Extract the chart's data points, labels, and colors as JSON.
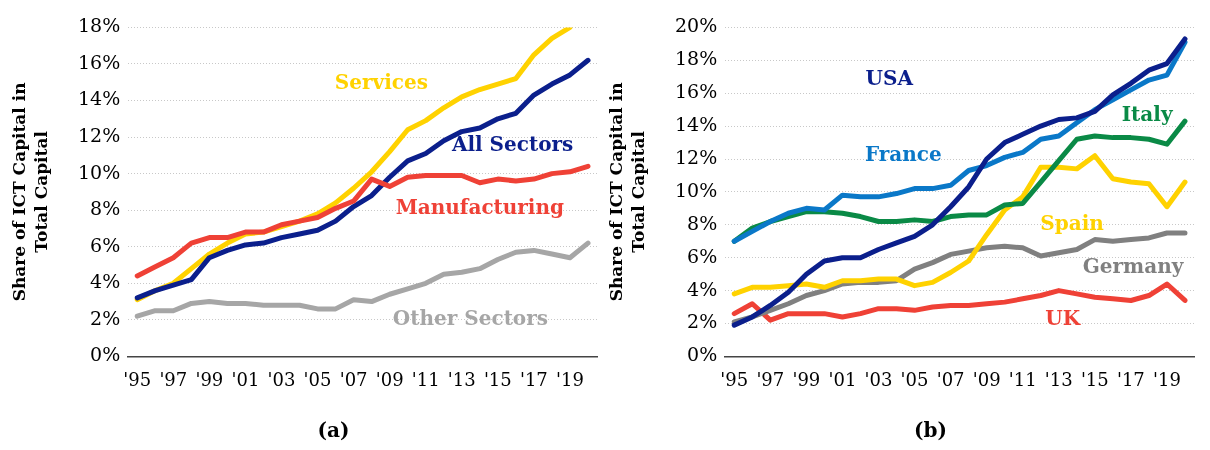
{
  "chart_data": [
    {
      "type": "line",
      "title": "(a)",
      "ylabel": "Share of ICT Capital in Total Capital",
      "categories": [
        "'95",
        null,
        "'97",
        null,
        "'99",
        null,
        "'01",
        null,
        "'03",
        null,
        "'05",
        null,
        "'07",
        null,
        "'09",
        null,
        "'11",
        null,
        "'13",
        null,
        "'15",
        null,
        "'17",
        null,
        "'19",
        null
      ],
      "ylim": [
        0,
        18
      ],
      "yticks": [
        {
          "value": 0,
          "label": "0%"
        },
        {
          "value": 2,
          "label": "2%"
        },
        {
          "value": 4,
          "label": "4%"
        },
        {
          "value": 6,
          "label": "6%"
        },
        {
          "value": 8,
          "label": "8%"
        },
        {
          "value": 10,
          "label": "10%"
        },
        {
          "value": 12,
          "label": "12%"
        },
        {
          "value": 14,
          "label": "14%"
        },
        {
          "value": 16,
          "label": "16%"
        },
        {
          "value": 18,
          "label": "18%"
        }
      ],
      "grid": "y",
      "marker": "none",
      "line_style": "solid",
      "series": [
        {
          "name": "Other Sectors",
          "color": "#a6a6a6",
          "values": [
            2.2,
            2.5,
            2.5,
            2.9,
            3.0,
            2.9,
            2.9,
            2.8,
            2.8,
            2.8,
            2.6,
            2.6,
            3.1,
            3.0,
            3.4,
            3.7,
            4.0,
            4.5,
            4.6,
            4.8,
            5.3,
            5.7,
            5.8,
            5.6,
            5.4,
            6.2
          ]
        },
        {
          "name": "Manufacturing",
          "color": "#ef4136",
          "values": [
            4.4,
            4.9,
            5.4,
            6.2,
            6.5,
            6.5,
            6.8,
            6.8,
            7.2,
            7.4,
            7.6,
            8.1,
            8.5,
            9.7,
            9.3,
            9.8,
            9.9,
            9.9,
            9.9,
            9.5,
            9.7,
            9.6,
            9.7,
            10.0,
            10.1,
            10.4
          ]
        },
        {
          "name": "All Sectors",
          "color": "#0b1f8c",
          "values": [
            3.2,
            3.6,
            3.9,
            4.2,
            5.4,
            5.8,
            6.1,
            6.2,
            6.5,
            6.7,
            6.9,
            7.4,
            8.2,
            8.8,
            9.8,
            10.7,
            11.1,
            11.8,
            12.3,
            12.5,
            13.0,
            13.3,
            14.3,
            14.9,
            15.4,
            16.2
          ]
        },
        {
          "name": "Services",
          "color": "#ffd200",
          "values": [
            3.1,
            3.6,
            4.0,
            4.8,
            5.6,
            6.2,
            6.7,
            6.8,
            7.1,
            7.4,
            7.8,
            8.4,
            9.2,
            10.1,
            11.2,
            12.4,
            12.9,
            13.6,
            14.2,
            14.6,
            14.9,
            15.2,
            16.5,
            17.4,
            18.0,
            null
          ]
        }
      ]
    },
    {
      "type": "line",
      "title": "(b)",
      "ylabel": "Share of ICT Capital in Total Capital",
      "categories": [
        "'95",
        null,
        "'97",
        null,
        "'99",
        null,
        "'01",
        null,
        "'03",
        null,
        "'05",
        null,
        "'07",
        null,
        "'09",
        null,
        "'11",
        null,
        "'13",
        null,
        "'15",
        null,
        "'17",
        null,
        "'19",
        null
      ],
      "ylim": [
        0,
        20
      ],
      "yticks": [
        {
          "value": 0,
          "label": "0%"
        },
        {
          "value": 2,
          "label": "2%"
        },
        {
          "value": 4,
          "label": "4%"
        },
        {
          "value": 6,
          "label": "6%"
        },
        {
          "value": 8,
          "label": "8%"
        },
        {
          "value": 10,
          "label": "10%"
        },
        {
          "value": 12,
          "label": "12%"
        },
        {
          "value": 14,
          "label": "14%"
        },
        {
          "value": 16,
          "label": "16%"
        },
        {
          "value": 18,
          "label": "18%"
        },
        {
          "value": 20,
          "label": "20%"
        }
      ],
      "grid": "y",
      "marker": "none",
      "line_style": "solid",
      "series": [
        {
          "name": "USA",
          "color": "#0b1f8c",
          "values": [
            1.9,
            2.4,
            3.1,
            3.9,
            5.0,
            5.8,
            6.0,
            6.0,
            6.5,
            6.9,
            7.3,
            8.0,
            9.1,
            10.3,
            12.0,
            13.0,
            13.5,
            14.0,
            14.4,
            14.5,
            14.9,
            15.9,
            16.6,
            17.4,
            17.8,
            19.3
          ]
        },
        {
          "name": "France",
          "color": "#0a78c8",
          "values": [
            7.0,
            7.6,
            8.2,
            8.7,
            9.0,
            8.9,
            9.8,
            9.7,
            9.7,
            9.9,
            10.2,
            10.2,
            10.4,
            11.3,
            11.6,
            12.1,
            12.4,
            13.2,
            13.4,
            14.2,
            15.0,
            15.6,
            16.2,
            16.8,
            17.1,
            19.1
          ]
        },
        {
          "name": "Italy",
          "color": "#0a8a46",
          "values": [
            7.0,
            7.8,
            8.2,
            8.5,
            8.8,
            8.8,
            8.7,
            8.5,
            8.2,
            8.2,
            8.3,
            8.2,
            8.5,
            8.6,
            8.6,
            9.2,
            9.3,
            10.6,
            11.9,
            13.2,
            13.4,
            13.3,
            13.3,
            13.2,
            12.9,
            14.3
          ]
        },
        {
          "name": "Spain",
          "color": "#ffd200",
          "values": [
            3.8,
            4.2,
            4.2,
            4.3,
            4.4,
            4.2,
            4.6,
            4.6,
            4.7,
            4.7,
            4.3,
            4.5,
            5.1,
            5.8,
            7.4,
            8.9,
            9.7,
            11.5,
            11.5,
            11.4,
            12.2,
            10.8,
            10.6,
            10.5,
            9.1,
            10.6
          ]
        },
        {
          "name": "Germany",
          "color": "#808080",
          "values": [
            2.1,
            2.4,
            2.8,
            3.2,
            3.7,
            4.0,
            4.4,
            4.5,
            4.5,
            4.6,
            5.3,
            5.7,
            6.2,
            6.4,
            6.6,
            6.7,
            6.6,
            6.1,
            6.3,
            6.5,
            7.1,
            7.0,
            7.1,
            7.2,
            7.5,
            7.5
          ]
        },
        {
          "name": "UK",
          "color": "#ef4136",
          "values": [
            2.6,
            3.2,
            2.2,
            2.6,
            2.6,
            2.6,
            2.4,
            2.6,
            2.9,
            2.9,
            2.8,
            3.0,
            3.1,
            3.1,
            3.2,
            3.3,
            3.5,
            3.7,
            4.0,
            3.8,
            3.6,
            3.5,
            3.4,
            3.7,
            4.4,
            3.4
          ]
        }
      ]
    }
  ]
}
